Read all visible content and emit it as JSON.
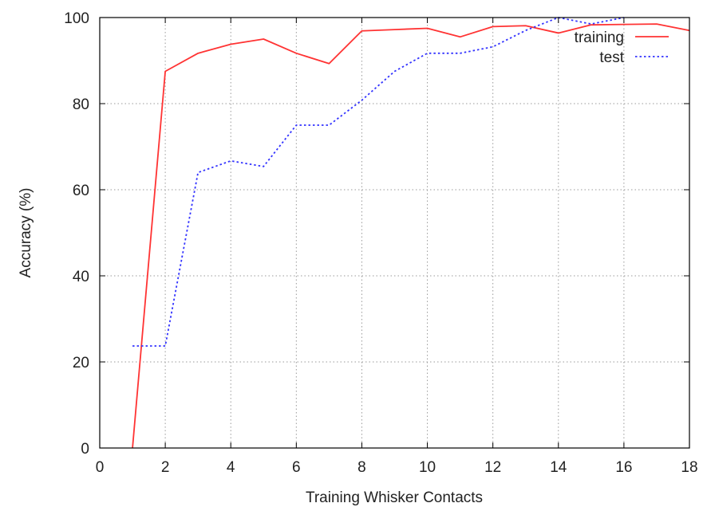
{
  "chart_data": {
    "type": "line",
    "title": "",
    "xlabel": "Training Whisker Contacts",
    "ylabel": "Accuracy (%)",
    "xlim": [
      0,
      18
    ],
    "ylim": [
      0,
      100
    ],
    "x_ticks": [
      0,
      2,
      4,
      6,
      8,
      10,
      12,
      14,
      16,
      18
    ],
    "y_ticks": [
      0,
      20,
      40,
      60,
      80,
      100
    ],
    "grid": true,
    "legend_position": "top-right",
    "series": [
      {
        "name": "training",
        "color": "#ff3333",
        "style": "solid",
        "points": [
          [
            1,
            0
          ],
          [
            2,
            87.5
          ],
          [
            3,
            91.7
          ],
          [
            4,
            93.8
          ],
          [
            5,
            95.0
          ],
          [
            6,
            91.7
          ],
          [
            7,
            89.3
          ],
          [
            8,
            96.9
          ],
          [
            9,
            97.2
          ],
          [
            10,
            97.5
          ],
          [
            11,
            95.5
          ],
          [
            12,
            97.9
          ],
          [
            13,
            98.1
          ],
          [
            14,
            96.4
          ],
          [
            15,
            98.3
          ],
          [
            16,
            98.4
          ],
          [
            17,
            98.5
          ],
          [
            18,
            97.0
          ]
        ]
      },
      {
        "name": "test",
        "color": "#3333ff",
        "style": "dotted",
        "points": [
          [
            1,
            23.7
          ],
          [
            2,
            23.7
          ],
          [
            3,
            64.0
          ],
          [
            4,
            66.7
          ],
          [
            5,
            65.4
          ],
          [
            6,
            75.0
          ],
          [
            7,
            75.0
          ],
          [
            8,
            80.8
          ],
          [
            9,
            87.5
          ],
          [
            10,
            91.7
          ],
          [
            11,
            91.7
          ],
          [
            12,
            93.2
          ],
          [
            13,
            97.0
          ],
          [
            14,
            100
          ],
          [
            15,
            98.5
          ],
          [
            16,
            100
          ]
        ]
      }
    ]
  }
}
